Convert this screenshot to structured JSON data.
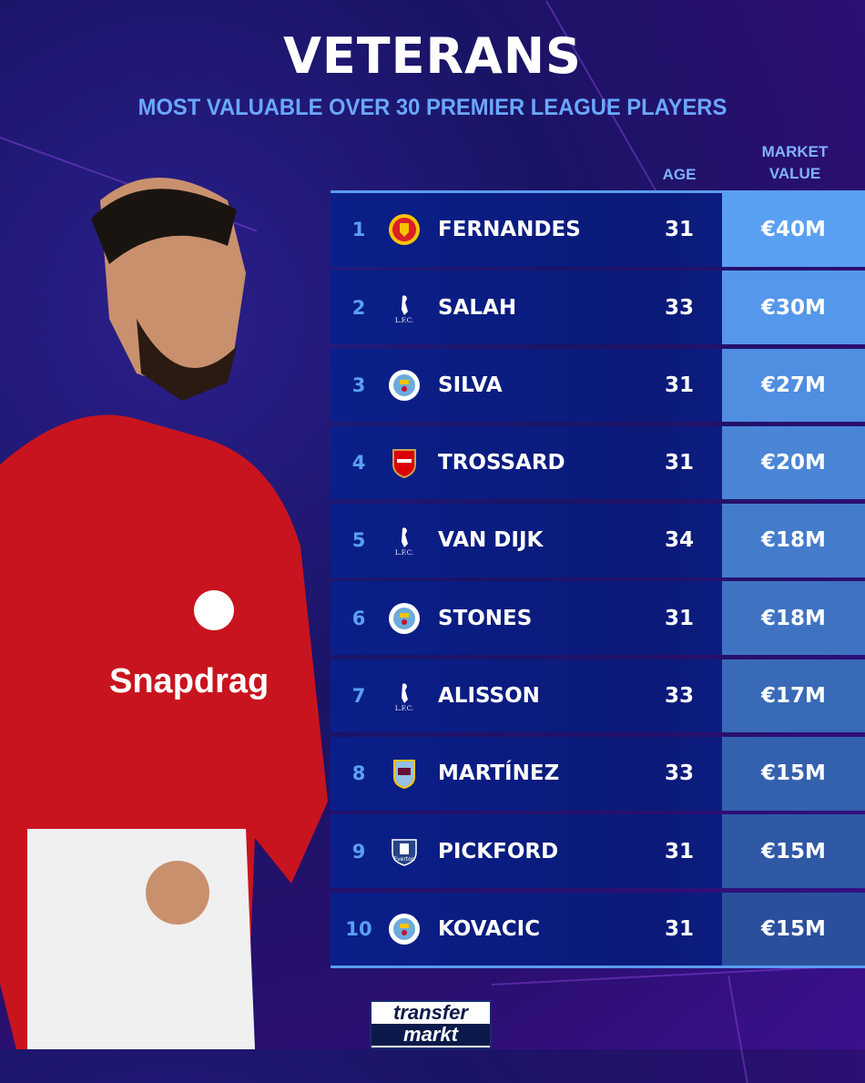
{
  "title": "VETERANS",
  "subtitle": "MOST VALUABLE OVER 30 PREMIER LEAGUE PLAYERS",
  "headers": {
    "age": "AGE",
    "market_value_1": "MARKET",
    "market_value_2": "VALUE"
  },
  "rows": [
    {
      "rank": "1",
      "club": "Manchester United",
      "name": "FERNANDES",
      "age": "31",
      "value": "€40M",
      "color": "#5aa0f2"
    },
    {
      "rank": "2",
      "club": "Liverpool",
      "name": "SALAH",
      "age": "33",
      "value": "€30M",
      "color": "#5597ea"
    },
    {
      "rank": "3",
      "club": "Manchester City",
      "name": "SILVA",
      "age": "31",
      "value": "€27M",
      "color": "#4f8ee0"
    },
    {
      "rank": "4",
      "club": "Arsenal",
      "name": "TROSSARD",
      "age": "31",
      "value": "€20M",
      "color": "#4a85d6"
    },
    {
      "rank": "5",
      "club": "Liverpool",
      "name": "VAN DIJK",
      "age": "34",
      "value": "€18M",
      "color": "#447ccc"
    },
    {
      "rank": "6",
      "club": "Manchester City",
      "name": "STONES",
      "age": "31",
      "value": "€18M",
      "color": "#3f73c2"
    },
    {
      "rank": "7",
      "club": "Liverpool",
      "name": "ALISSON",
      "age": "33",
      "value": "€17M",
      "color": "#396ab8"
    },
    {
      "rank": "8",
      "club": "Aston Villa",
      "name": "MARTÍNEZ",
      "age": "33",
      "value": "€15M",
      "color": "#3461ae"
    },
    {
      "rank": "9",
      "club": "Everton",
      "name": "PICKFORD",
      "age": "31",
      "value": "€15M",
      "color": "#2f58a5"
    },
    {
      "rank": "10",
      "club": "Manchester City",
      "name": "KOVACIC",
      "age": "31",
      "value": "€15M",
      "color": "#2a509c"
    }
  ],
  "logo": {
    "line1": "transfer",
    "line2": "markt"
  },
  "crest_colors": {
    "Manchester United": "#d81f26",
    "Liverpool": "#ffffff",
    "Manchester City": "#9ccbf0",
    "Arsenal": "#db0007",
    "Aston Villa": "#95bfe5",
    "Everton": "#274488"
  }
}
